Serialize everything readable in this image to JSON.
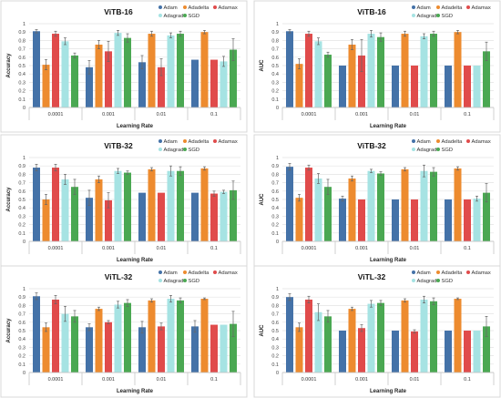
{
  "optimizers": [
    {
      "name": "Adam",
      "color": "#4472a8"
    },
    {
      "name": "Adadelta",
      "color": "#ed8b2f"
    },
    {
      "name": "Adamax",
      "color": "#e04b4b"
    },
    {
      "name": "Adagrad",
      "color": "#a6e3e3"
    },
    {
      "name": "SGD",
      "color": "#4aa852"
    }
  ],
  "chart_data": [
    {
      "type": "bar",
      "title": "ViTB-16",
      "xlabel": "Learning Rate",
      "ylabel": "Accuracy",
      "categories": [
        "0.0001",
        "0.001",
        "0.01",
        "0.1"
      ],
      "ylim": [
        0,
        1
      ],
      "yticks": [
        "0",
        "0.1",
        "0.2",
        "0.3",
        "0.4",
        "0.5",
        "0.6",
        "0.7",
        "0.8",
        "0.9",
        "1"
      ],
      "legend": "top-right",
      "grid": true,
      "series": [
        {
          "name": "Adam",
          "values": [
            0.91,
            0.48,
            0.54,
            0.57
          ],
          "errors": [
            0.02,
            0.08,
            0.08,
            0.0
          ]
        },
        {
          "name": "Adadelta",
          "values": [
            0.51,
            0.75,
            0.88,
            0.9
          ],
          "errors": [
            0.06,
            0.05,
            0.03,
            0.02
          ]
        },
        {
          "name": "Adamax",
          "values": [
            0.88,
            0.67,
            0.48,
            0.57
          ],
          "errors": [
            0.03,
            0.12,
            0.1,
            0.0
          ]
        },
        {
          "name": "Adagrad",
          "values": [
            0.79,
            0.89,
            0.86,
            0.55
          ],
          "errors": [
            0.04,
            0.03,
            0.03,
            0.06
          ]
        },
        {
          "name": "SGD",
          "values": [
            0.62,
            0.83,
            0.88,
            0.69
          ],
          "errors": [
            0.03,
            0.05,
            0.03,
            0.13
          ]
        }
      ]
    },
    {
      "type": "bar",
      "title": "ViTB-16",
      "xlabel": "Learning Rate",
      "ylabel": "AUC",
      "categories": [
        "0.0001",
        "0.001",
        "0.01",
        "0.1"
      ],
      "ylim": [
        0,
        1
      ],
      "yticks": [
        "0",
        "0.1",
        "0.2",
        "0.3",
        "0.4",
        "0.5",
        "0.6",
        "0.7",
        "0.8",
        "0.9",
        "1"
      ],
      "legend": "top-right",
      "grid": true,
      "series": [
        {
          "name": "Adam",
          "values": [
            0.91,
            0.5,
            0.5,
            0.5
          ],
          "errors": [
            0.02,
            0.0,
            0.0,
            0.0
          ]
        },
        {
          "name": "Adadelta",
          "values": [
            0.52,
            0.75,
            0.88,
            0.9
          ],
          "errors": [
            0.06,
            0.06,
            0.03,
            0.02
          ]
        },
        {
          "name": "Adamax",
          "values": [
            0.88,
            0.62,
            0.5,
            0.5
          ],
          "errors": [
            0.03,
            0.19,
            0.0,
            0.0
          ]
        },
        {
          "name": "Adagrad",
          "values": [
            0.79,
            0.88,
            0.85,
            0.5
          ],
          "errors": [
            0.04,
            0.04,
            0.03,
            0.0
          ]
        },
        {
          "name": "SGD",
          "values": [
            0.63,
            0.84,
            0.88,
            0.67
          ],
          "errors": [
            0.03,
            0.05,
            0.03,
            0.11
          ]
        }
      ]
    },
    {
      "type": "bar",
      "title": "ViTB-32",
      "xlabel": "Learning Rate",
      "ylabel": "Accuracy",
      "categories": [
        "0.0001",
        "0.001",
        "0.01",
        "0.1"
      ],
      "ylim": [
        0,
        1
      ],
      "yticks": [
        "0",
        "0.1",
        "0.2",
        "0.3",
        "0.4",
        "0.5",
        "0.6",
        "0.7",
        "0.8",
        "0.9",
        "1"
      ],
      "legend": "top-right",
      "grid": true,
      "series": [
        {
          "name": "Adam",
          "values": [
            0.88,
            0.52,
            0.58,
            0.58
          ],
          "errors": [
            0.04,
            0.09,
            0.0,
            0.0
          ]
        },
        {
          "name": "Adadelta",
          "values": [
            0.5,
            0.74,
            0.86,
            0.87
          ],
          "errors": [
            0.06,
            0.04,
            0.02,
            0.02
          ]
        },
        {
          "name": "Adamax",
          "values": [
            0.88,
            0.49,
            0.58,
            0.57
          ],
          "errors": [
            0.04,
            0.09,
            0.0,
            0.03
          ]
        },
        {
          "name": "Adagrad",
          "values": [
            0.74,
            0.84,
            0.84,
            0.59
          ],
          "errors": [
            0.06,
            0.03,
            0.06,
            0.02
          ]
        },
        {
          "name": "SGD",
          "values": [
            0.65,
            0.82,
            0.84,
            0.61
          ],
          "errors": [
            0.09,
            0.02,
            0.05,
            0.11
          ]
        }
      ]
    },
    {
      "type": "bar",
      "title": "ViTB-32",
      "xlabel": "Learning Rate",
      "ylabel": "AUC",
      "categories": [
        "0.0001",
        "0.001",
        "0.01",
        "0.1"
      ],
      "ylim": [
        0,
        1
      ],
      "yticks": [
        "0",
        "0.1",
        "0.2",
        "0.3",
        "0.4",
        "0.5",
        "0.6",
        "0.7",
        "0.8",
        "0.9",
        "1"
      ],
      "legend": "top-right",
      "grid": true,
      "series": [
        {
          "name": "Adam",
          "values": [
            0.89,
            0.51,
            0.5,
            0.5
          ],
          "errors": [
            0.04,
            0.03,
            0.0,
            0.0
          ]
        },
        {
          "name": "Adadelta",
          "values": [
            0.52,
            0.75,
            0.86,
            0.87
          ],
          "errors": [
            0.04,
            0.03,
            0.02,
            0.02
          ]
        },
        {
          "name": "Adamax",
          "values": [
            0.88,
            0.5,
            0.5,
            0.5
          ],
          "errors": [
            0.03,
            0.0,
            0.0,
            0.0
          ]
        },
        {
          "name": "Adagrad",
          "values": [
            0.75,
            0.84,
            0.84,
            0.51
          ],
          "errors": [
            0.06,
            0.02,
            0.07,
            0.03
          ]
        },
        {
          "name": "SGD",
          "values": [
            0.65,
            0.81,
            0.83,
            0.58
          ],
          "errors": [
            0.09,
            0.02,
            0.05,
            0.11
          ]
        }
      ]
    },
    {
      "type": "bar",
      "title": "ViTL-32",
      "xlabel": "Learning Rate",
      "ylabel": "Accuracy",
      "categories": [
        "0.0001",
        "0.001",
        "0.01",
        "0.1"
      ],
      "ylim": [
        0,
        1
      ],
      "yticks": [
        "0",
        "0.1",
        "0.2",
        "0.3",
        "0.4",
        "0.5",
        "0.6",
        "0.7",
        "0.8",
        "0.9",
        "1"
      ],
      "legend": "top-right",
      "grid": true,
      "series": [
        {
          "name": "Adam",
          "values": [
            0.91,
            0.54,
            0.54,
            0.55
          ],
          "errors": [
            0.04,
            0.04,
            0.07,
            0.07
          ]
        },
        {
          "name": "Adadelta",
          "values": [
            0.54,
            0.76,
            0.86,
            0.88
          ],
          "errors": [
            0.05,
            0.02,
            0.02,
            0.01
          ]
        },
        {
          "name": "Adamax",
          "values": [
            0.87,
            0.6,
            0.55,
            0.57
          ],
          "errors": [
            0.05,
            0.02,
            0.04,
            0.0
          ]
        },
        {
          "name": "Adagrad",
          "values": [
            0.7,
            0.81,
            0.88,
            0.57
          ],
          "errors": [
            0.09,
            0.04,
            0.04,
            0.0
          ]
        },
        {
          "name": "SGD",
          "values": [
            0.67,
            0.83,
            0.86,
            0.58
          ],
          "errors": [
            0.07,
            0.04,
            0.03,
            0.15
          ]
        }
      ]
    },
    {
      "type": "bar",
      "title": "ViTL-32",
      "xlabel": "Learning Rate",
      "ylabel": "AUC",
      "categories": [
        "0.0001",
        "0.001",
        "0.01",
        "0.1"
      ],
      "ylim": [
        0,
        1
      ],
      "yticks": [
        "0",
        "0.1",
        "0.2",
        "0.3",
        "0.4",
        "0.5",
        "0.6",
        "0.7",
        "0.8",
        "0.9",
        "1"
      ],
      "legend": "top-right",
      "grid": true,
      "series": [
        {
          "name": "Adam",
          "values": [
            0.9,
            0.5,
            0.5,
            0.5
          ],
          "errors": [
            0.04,
            0.0,
            0.0,
            0.0
          ]
        },
        {
          "name": "Adadelta",
          "values": [
            0.54,
            0.76,
            0.86,
            0.88
          ],
          "errors": [
            0.05,
            0.02,
            0.02,
            0.01
          ]
        },
        {
          "name": "Adamax",
          "values": [
            0.87,
            0.53,
            0.49,
            0.5
          ],
          "errors": [
            0.04,
            0.04,
            0.02,
            0.0
          ]
        },
        {
          "name": "Adagrad",
          "values": [
            0.72,
            0.82,
            0.87,
            0.5
          ],
          "errors": [
            0.1,
            0.04,
            0.04,
            0.0
          ]
        },
        {
          "name": "SGD",
          "values": [
            0.67,
            0.83,
            0.85,
            0.55
          ],
          "errors": [
            0.07,
            0.03,
            0.04,
            0.12
          ]
        }
      ]
    }
  ]
}
